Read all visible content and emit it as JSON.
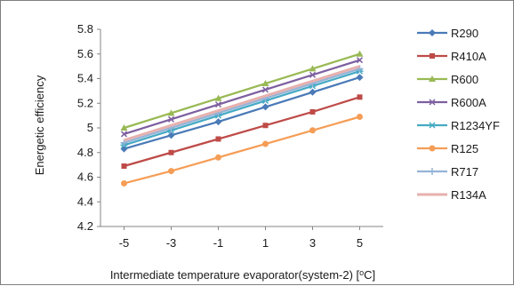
{
  "chart_data": {
    "type": "line",
    "x": [
      -5,
      -3,
      -1,
      1,
      3,
      5
    ],
    "xtick_labels": [
      "-5",
      "-3",
      "-1",
      "1",
      "3",
      "5"
    ],
    "ylim": [
      4.2,
      5.8
    ],
    "yticks": [
      4.2,
      4.4,
      4.6,
      4.8,
      5,
      5.2,
      5.4,
      5.6,
      5.8
    ],
    "ytick_labels": [
      "4.2",
      "4.4",
      "4.6",
      "4.8",
      "5",
      "5.2",
      "5.4",
      "5.6",
      "5.8"
    ],
    "xlabel": "Intermediate temperature evaporator(system-2) [",
    "xlabel_sup": "o",
    "xlabel_unit": "C]",
    "ylabel": "Energetic efficiency",
    "grid": "none",
    "legend_position": "right",
    "series": [
      {
        "name": "R290",
        "color": "#4a7ab7",
        "marker": "diamond",
        "values": [
          4.83,
          4.94,
          5.05,
          5.17,
          5.29,
          5.41
        ]
      },
      {
        "name": "R410A",
        "color": "#be4b48",
        "marker": "square",
        "values": [
          4.69,
          4.8,
          4.91,
          5.02,
          5.13,
          5.25
        ]
      },
      {
        "name": "R600",
        "color": "#98b954",
        "marker": "triangle",
        "values": [
          5.0,
          5.12,
          5.24,
          5.36,
          5.48,
          5.6
        ]
      },
      {
        "name": "R600A",
        "color": "#7d5fa0",
        "marker": "x",
        "values": [
          4.95,
          5.07,
          5.19,
          5.31,
          5.43,
          5.55
        ]
      },
      {
        "name": "R1234YF",
        "color": "#46aac4",
        "marker": "star",
        "values": [
          4.86,
          4.98,
          5.1,
          5.22,
          5.34,
          5.46
        ]
      },
      {
        "name": "R125",
        "color": "#f59d56",
        "marker": "circle",
        "values": [
          4.55,
          4.65,
          4.76,
          4.87,
          4.98,
          5.09
        ]
      },
      {
        "name": "R717",
        "color": "#95b3d7",
        "marker": "plus",
        "values": [
          4.88,
          5.0,
          5.12,
          5.24,
          5.36,
          5.48
        ]
      },
      {
        "name": "R134A",
        "color": "#e6b0ae",
        "marker": "none",
        "values": [
          4.9,
          5.02,
          5.14,
          5.26,
          5.38,
          5.5
        ]
      }
    ]
  }
}
